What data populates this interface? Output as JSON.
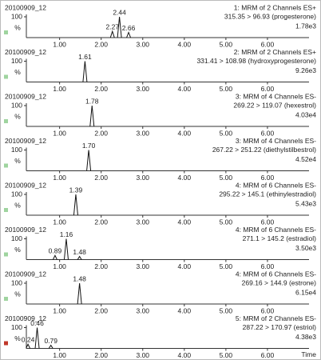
{
  "chart_data": [
    {
      "type": "chromatogram",
      "sample": "20100909_12",
      "channel": "1: MRM of 2 Channels ES+",
      "transition": "315.35 > 96.93 (progesterone)",
      "intensity": "1.78e3",
      "color": "#2e8b57",
      "peaks": [
        {
          "rt": 2.27,
          "label": "2.27",
          "height": 30
        },
        {
          "rt": 2.44,
          "label": "2.44",
          "height": 100
        },
        {
          "rt": 2.66,
          "label": "2.66",
          "height": 25
        }
      ],
      "ylabel": "%",
      "ylim": [
        0,
        100
      ],
      "yticks": [
        100
      ],
      "xlim": [
        0.2,
        7.0
      ],
      "xticks": [
        {
          "value": 1,
          "label": "1.00"
        },
        {
          "value": 2,
          "label": "2.00"
        },
        {
          "value": 3,
          "label": "3.00"
        },
        {
          "value": 4,
          "label": "4.00"
        },
        {
          "value": 5,
          "label": "5.00"
        },
        {
          "value": 6,
          "label": "6.00"
        }
      ]
    },
    {
      "type": "chromatogram",
      "sample": "20100909_12",
      "channel": "2: MRM of 2 Channels ES+",
      "transition": "331.41 > 108.98 (hydroxyprogesterone)",
      "intensity": "9.26e3",
      "color": "#222222",
      "peaks": [
        {
          "rt": 1.61,
          "label": "1.61",
          "height": 100
        }
      ],
      "ylabel": "%",
      "ylim": [
        0,
        100
      ],
      "yticks": [
        100
      ],
      "xlim": [
        0.2,
        7.0
      ],
      "xticks": [
        {
          "value": 1,
          "label": "1.00"
        },
        {
          "value": 2,
          "label": "2.00"
        },
        {
          "value": 3,
          "label": "3.00"
        },
        {
          "value": 4,
          "label": "4.00"
        },
        {
          "value": 5,
          "label": "5.00"
        },
        {
          "value": 6,
          "label": "6.00"
        }
      ]
    },
    {
      "type": "chromatogram",
      "sample": "20100909_12",
      "channel": "3: MRM of 4 Channels ES-",
      "transition": "269.22 > 119.07 (hexestrol)",
      "intensity": "4.03e4",
      "color": "#222222",
      "peaks": [
        {
          "rt": 1.78,
          "label": "1.78",
          "height": 100
        }
      ],
      "ylabel": "%",
      "ylim": [
        0,
        100
      ],
      "yticks": [
        100
      ],
      "xlim": [
        0.2,
        7.0
      ],
      "xticks": [
        {
          "value": 1,
          "label": "1.00"
        },
        {
          "value": 2,
          "label": "2.00"
        },
        {
          "value": 3,
          "label": "3.00"
        },
        {
          "value": 4,
          "label": "4.00"
        },
        {
          "value": 5,
          "label": "5.00"
        },
        {
          "value": 6,
          "label": "6.00"
        }
      ]
    },
    {
      "type": "chromatogram",
      "sample": "20100909_12",
      "channel": "3: MRM of 4 Channels ES-",
      "transition": "267.22 > 251.22 (diethylstilbestrol)",
      "intensity": "4.52e4",
      "color": "#2e8b57",
      "peaks": [
        {
          "rt": 1.7,
          "label": "1.70",
          "height": 100
        }
      ],
      "ylabel": "%",
      "ylim": [
        0,
        100
      ],
      "yticks": [
        100
      ],
      "xlim": [
        0.2,
        7.0
      ],
      "xticks": [
        {
          "value": 1,
          "label": "1.00"
        },
        {
          "value": 2,
          "label": "2.00"
        },
        {
          "value": 3,
          "label": "3.00"
        },
        {
          "value": 4,
          "label": "4.00"
        },
        {
          "value": 5,
          "label": "5.00"
        },
        {
          "value": 6,
          "label": "6.00"
        }
      ]
    },
    {
      "type": "chromatogram",
      "sample": "20100909_12",
      "channel": "4: MRM of 6 Channels ES-",
      "transition": "295.22 > 145.1 (ethinylestradiol)",
      "intensity": "5.43e3",
      "color": "#a0302a",
      "peaks": [
        {
          "rt": 1.39,
          "label": "1.39",
          "height": 100
        }
      ],
      "ylabel": "%",
      "ylim": [
        0,
        100
      ],
      "yticks": [
        100
      ],
      "xlim": [
        0.2,
        7.0
      ],
      "xticks": [
        {
          "value": 1,
          "label": "1.00"
        },
        {
          "value": 2,
          "label": "2.00"
        },
        {
          "value": 3,
          "label": "3.00"
        },
        {
          "value": 4,
          "label": "4.00"
        },
        {
          "value": 5,
          "label": "5.00"
        },
        {
          "value": 6,
          "label": "6.00"
        }
      ]
    },
    {
      "type": "chromatogram",
      "sample": "20100909_12",
      "channel": "4: MRM of 6 Channels ES-",
      "transition": "271.1 > 145.2 (estradiol)",
      "intensity": "3.50e3",
      "color": "#7a3a7a",
      "peaks": [
        {
          "rt": 0.89,
          "label": "0.89",
          "height": 20
        },
        {
          "rt": 1.16,
          "label": "1.16",
          "height": 100
        },
        {
          "rt": 1.48,
          "label": "1.48",
          "height": 15
        }
      ],
      "ylabel": "%",
      "ylim": [
        0,
        100
      ],
      "yticks": [
        100
      ],
      "xlim": [
        0.2,
        7.0
      ],
      "xticks": [
        {
          "value": 1,
          "label": "1.00"
        },
        {
          "value": 2,
          "label": "2.00"
        },
        {
          "value": 3,
          "label": "3.00"
        },
        {
          "value": 4,
          "label": "4.00"
        },
        {
          "value": 5,
          "label": "5.00"
        },
        {
          "value": 6,
          "label": "6.00"
        }
      ]
    },
    {
      "type": "chromatogram",
      "sample": "20100909_12",
      "channel": "4: MRM of 6 Channels ES-",
      "transition": "269.16 > 144.9 (estrone)",
      "intensity": "6.15e4",
      "color": "#222222",
      "peaks": [
        {
          "rt": 1.48,
          "label": "1.48",
          "height": 100
        }
      ],
      "ylabel": "%",
      "ylim": [
        0,
        100
      ],
      "yticks": [
        100
      ],
      "xlim": [
        0.2,
        7.0
      ],
      "xticks": [
        {
          "value": 1,
          "label": "1.00"
        },
        {
          "value": 2,
          "label": "2.00"
        },
        {
          "value": 3,
          "label": "3.00"
        },
        {
          "value": 4,
          "label": "4.00"
        },
        {
          "value": 5,
          "label": "5.00"
        },
        {
          "value": 6,
          "label": "6.00"
        }
      ]
    },
    {
      "type": "chromatogram",
      "sample": "20100909_12",
      "channel": "5: MRM of 2 Channels ES-",
      "transition": "287.22 > 170.97 (estriol)",
      "intensity": "4.38e3",
      "color": "#a0302a",
      "peaks": [
        {
          "rt": 0.24,
          "label": "0.24",
          "height": 20
        },
        {
          "rt": 0.46,
          "label": "0.46",
          "height": 100
        },
        {
          "rt": 0.79,
          "label": "0.79",
          "height": 15
        }
      ],
      "ylabel": "%",
      "ylim": [
        0,
        100
      ],
      "yticks": [
        100
      ],
      "xlim": [
        0.2,
        7.0
      ],
      "xlabel": "Time",
      "xticks": [
        {
          "value": 1,
          "label": "1.00"
        },
        {
          "value": 2,
          "label": "2.00"
        },
        {
          "value": 3,
          "label": "3.00"
        },
        {
          "value": 4,
          "label": "4.00"
        },
        {
          "value": 5,
          "label": "5.00"
        },
        {
          "value": 6,
          "label": "6.00"
        }
      ]
    }
  ]
}
